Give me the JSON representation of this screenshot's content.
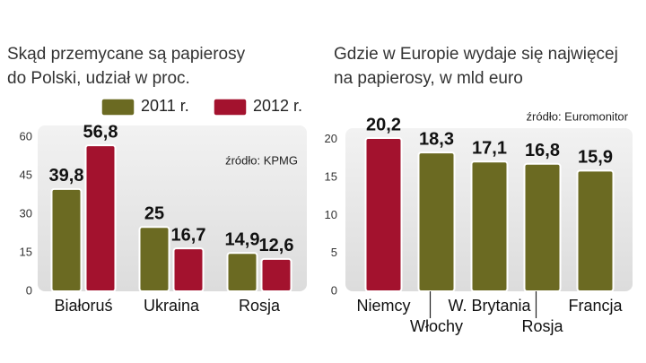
{
  "chart_data": [
    {
      "type": "bar",
      "title": [
        "Skąd przemycane są papierosy",
        "do Polski, udział w proc."
      ],
      "source": "źródło: KPMG",
      "categories": [
        "Białoruś",
        "Ukraina",
        "Rosja"
      ],
      "series": [
        {
          "name": "2011 r.",
          "color": "#6b6a22",
          "values": [
            39.8,
            25,
            14.9
          ],
          "value_labels": [
            "39,8",
            "25",
            "14,9"
          ]
        },
        {
          "name": "2012 r.",
          "color": "#a3122e",
          "values": [
            56.8,
            16.7,
            12.6
          ],
          "value_labels": [
            "56,8",
            "16,7",
            "12,6"
          ]
        }
      ],
      "ylim": [
        0,
        64.5
      ],
      "yticks": [
        0,
        15,
        30,
        45,
        60
      ]
    },
    {
      "type": "bar",
      "title": [
        "Gdzie w Europie wydaje się najwięcej",
        "na papierosy, w mld euro"
      ],
      "source": "źródło: Euromonitor",
      "categories": [
        "Niemcy",
        "Włochy",
        "W. Brytania",
        "Rosja",
        "Francja"
      ],
      "series": [
        {
          "colors": [
            "#a3122e",
            "#6b6a22",
            "#6b6a22",
            "#6b6a22",
            "#6b6a22"
          ],
          "values": [
            20.2,
            18.3,
            17.1,
            16.8,
            15.9
          ],
          "value_labels": [
            "20,2",
            "18,3",
            "17,1",
            "16,8",
            "15,9"
          ]
        }
      ],
      "ylim": [
        0,
        21.5
      ],
      "yticks": [
        0,
        5,
        10,
        15,
        20
      ]
    }
  ]
}
